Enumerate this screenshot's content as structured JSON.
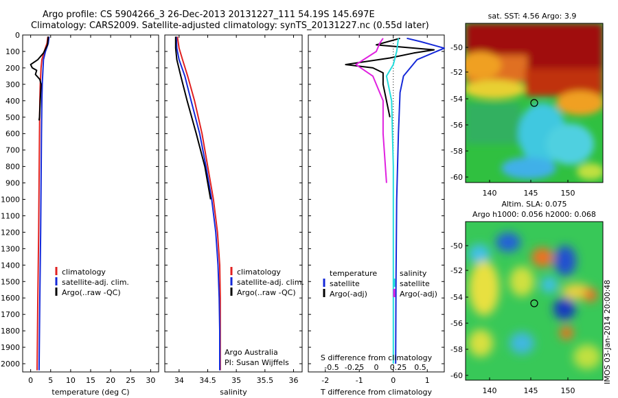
{
  "header": {
    "line1": "Argo profile: CS 5904266_3 26-Dec-2013 20131227_111 54.19S 145.697E",
    "line2": "Climatology: CARS2009. Satellite-adjusted climatology: synTS_20131227.nc (0.55d later)"
  },
  "colors": {
    "climatology": "#e02020",
    "satellite": "#1428d8",
    "argo": "#000000",
    "sat_salt": "#22dddd",
    "argo_salt": "#e020e0"
  },
  "chart_data": [
    {
      "type": "line",
      "id": "temperature",
      "xlabel": "temperature (deg C)",
      "ylabel": "",
      "xlim": [
        -2,
        32
      ],
      "ylim": [
        2050,
        0
      ],
      "xticks": [
        0,
        5,
        10,
        15,
        20,
        25,
        30
      ],
      "yticks": [
        0,
        100,
        200,
        300,
        400,
        500,
        600,
        700,
        800,
        900,
        1000,
        1100,
        1200,
        1300,
        1400,
        1500,
        1600,
        1700,
        1800,
        1900,
        2000
      ],
      "legend": [
        "climatology",
        "satellite-adj. clim.",
        "Argo(..raw -QC)"
      ],
      "series": [
        {
          "name": "climatology",
          "color": "#e02020",
          "x": [
            4.3,
            4.1,
            3.4,
            2.8,
            2.6,
            2.5,
            2.4,
            2.3,
            2.2,
            2.1,
            2.0,
            1.8,
            1.6
          ],
          "y": [
            10,
            50,
            100,
            150,
            200,
            250,
            300,
            400,
            600,
            900,
            1200,
            1600,
            2040
          ]
        },
        {
          "name": "satellite-adj. clim.",
          "color": "#1428d8",
          "x": [
            4.6,
            4.4,
            3.7,
            3.2,
            3.1,
            3.0,
            2.9,
            2.8,
            2.7,
            2.6,
            2.5,
            2.3,
            2.1
          ],
          "y": [
            10,
            50,
            100,
            150,
            200,
            250,
            300,
            400,
            600,
            900,
            1200,
            1600,
            2040
          ]
        },
        {
          "name": "Argo(..raw -QC)",
          "color": "#000000",
          "x": [
            4.4,
            4.2,
            3.2,
            1.8,
            0.0,
            0.4,
            1.5,
            1.2,
            2.3,
            2.6,
            2.4,
            2.2,
            2.1
          ],
          "y": [
            10,
            60,
            110,
            150,
            180,
            200,
            215,
            240,
            270,
            300,
            400,
            500,
            520
          ]
        }
      ]
    },
    {
      "type": "line",
      "id": "salinity",
      "xlabel": "salinity",
      "ylabel": "",
      "xlim": [
        33.75,
        36.15
      ],
      "ylim": [
        2050,
        0
      ],
      "xticks": [
        34,
        34.5,
        35,
        35.5,
        36
      ],
      "legend": [
        "climatology",
        "satellite-adj. clim.",
        "Argo(..raw -QC)"
      ],
      "annotation": [
        "Argo Australia",
        "PI: Susan Wijffels"
      ],
      "series": [
        {
          "name": "climatology",
          "color": "#e02020",
          "x": [
            33.97,
            34.0,
            34.06,
            34.15,
            34.27,
            34.4,
            34.5,
            34.6,
            34.67,
            34.71,
            34.72,
            34.72,
            34.72
          ],
          "y": [
            10,
            80,
            150,
            250,
            400,
            600,
            800,
            1000,
            1200,
            1400,
            1600,
            1800,
            2040
          ]
        },
        {
          "name": "satellite-adj. clim.",
          "color": "#1428d8",
          "x": [
            33.95,
            33.96,
            34.0,
            34.1,
            34.21,
            34.36,
            34.47,
            34.57,
            34.64,
            34.68,
            34.7,
            34.71,
            34.71
          ],
          "y": [
            10,
            80,
            150,
            250,
            400,
            600,
            800,
            1000,
            1200,
            1400,
            1600,
            1800,
            2040
          ]
        },
        {
          "name": "Argo(..raw -QC)",
          "color": "#000000",
          "x": [
            33.94,
            33.94,
            33.96,
            34.03,
            34.14,
            34.3,
            34.45,
            34.55
          ],
          "y": [
            10,
            80,
            150,
            250,
            400,
            600,
            800,
            1000
          ]
        }
      ]
    },
    {
      "type": "line",
      "id": "difference",
      "xlabel": "T difference from climatology",
      "xlabel2": "S difference from climatology",
      "ylabel": "",
      "xlim": [
        -2.5,
        1.5
      ],
      "ylim": [
        2050,
        0
      ],
      "xticks": [
        -2,
        -1,
        0,
        1
      ],
      "xticks2": [
        "-0.5",
        "-0.25",
        "0",
        "0.25",
        "0.5"
      ],
      "legend_titles": [
        "temperature",
        "salinity"
      ],
      "legend": [
        "satellite",
        "Argo(-adj)",
        "satellite",
        "Argo(-adj)"
      ],
      "series": [
        {
          "name": "satellite",
          "color": "#1428d8",
          "x": [
            0.4,
            0.8,
            1.5,
            0.7,
            0.3,
            0.2,
            0.15,
            0.1,
            0.08,
            0.07
          ],
          "y": [
            20,
            40,
            80,
            150,
            250,
            350,
            600,
            1000,
            1500,
            2000
          ]
        },
        {
          "name": "Argo(-adj)",
          "color": "#000000",
          "x": [
            0.2,
            -0.5,
            1.2,
            0.6,
            -0.1,
            -1.4,
            -0.6,
            -0.3,
            -0.3,
            -0.1
          ],
          "y": [
            20,
            60,
            90,
            110,
            140,
            180,
            200,
            230,
            300,
            500
          ]
        },
        {
          "name": "satellite",
          "color": "#22dddd",
          "x": [
            0.15,
            0.1,
            0.0,
            -0.2,
            -0.05,
            0.0,
            0.0,
            0.0
          ],
          "y": [
            20,
            100,
            180,
            250,
            400,
            800,
            1500,
            2000
          ]
        },
        {
          "name": "Argo(-adj)",
          "color": "#e020e0",
          "x": [
            -0.3,
            -0.4,
            -0.5,
            -1.1,
            -0.6,
            -0.3,
            -0.3,
            -0.2
          ],
          "y": [
            20,
            50,
            100,
            180,
            250,
            400,
            600,
            900
          ]
        }
      ]
    }
  ],
  "maps": [
    {
      "title": "sat. SST: 4.56 Argo: 3.9",
      "xticks": [
        "140",
        "145",
        "150"
      ],
      "yticks": [
        "-50",
        "-52",
        "-54",
        "-56",
        "-58",
        "-60"
      ]
    },
    {
      "title1": "Altim. SLA: 0.075",
      "title2": "Argo h1000: 0.056 h2000: 0.068",
      "xticks": [
        "140",
        "145",
        "150"
      ],
      "yticks": [
        "-50",
        "-52",
        "-54",
        "-56",
        "-58",
        "-60"
      ]
    }
  ],
  "stamp": "IMOS 03-Jan-2014 20:00:48"
}
